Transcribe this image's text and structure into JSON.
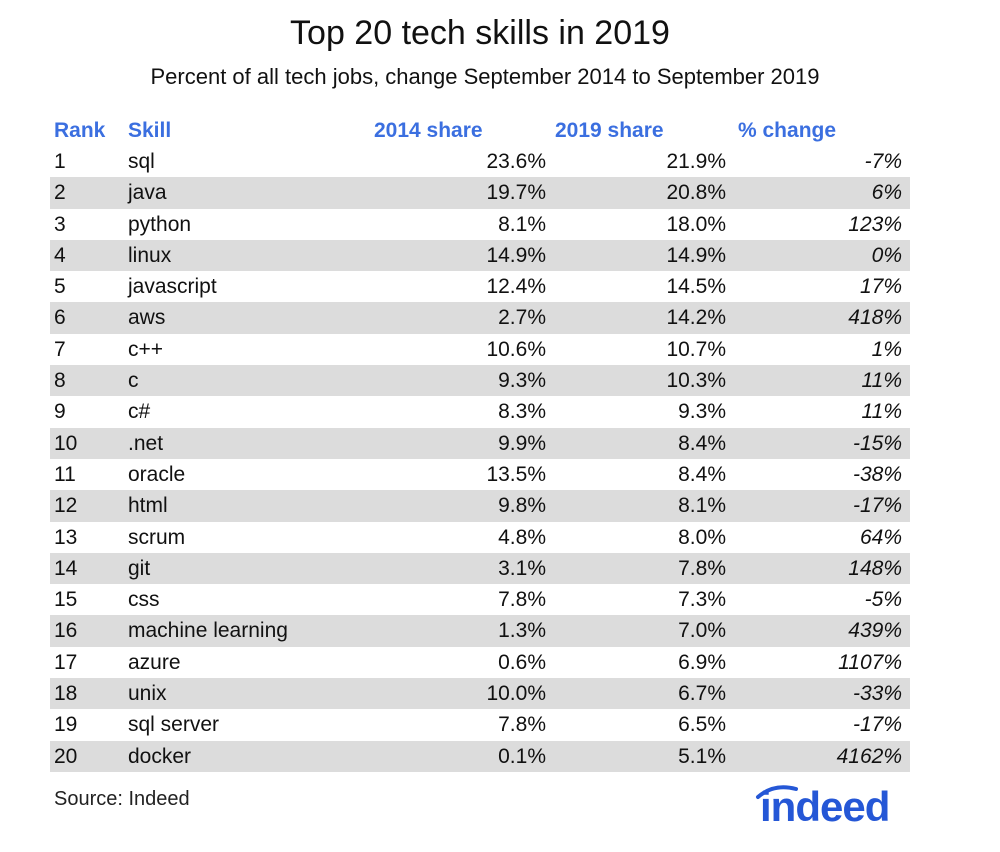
{
  "chart_data": {
    "type": "table",
    "title": "Top 20 tech skills in 2019",
    "subtitle": "Percent of all tech jobs, change September 2014 to September 2019",
    "columns": [
      "Rank",
      "Skill",
      "2014 share",
      "2019 share",
      "% change"
    ],
    "rows": [
      {
        "rank": "1",
        "skill": "sql",
        "share_2014": "23.6%",
        "share_2019": "21.9%",
        "change": "-7%"
      },
      {
        "rank": "2",
        "skill": "java",
        "share_2014": "19.7%",
        "share_2019": "20.8%",
        "change": "6%"
      },
      {
        "rank": "3",
        "skill": "python",
        "share_2014": "8.1%",
        "share_2019": "18.0%",
        "change": "123%"
      },
      {
        "rank": "4",
        "skill": "linux",
        "share_2014": "14.9%",
        "share_2019": "14.9%",
        "change": "0%"
      },
      {
        "rank": "5",
        "skill": "javascript",
        "share_2014": "12.4%",
        "share_2019": "14.5%",
        "change": "17%"
      },
      {
        "rank": "6",
        "skill": "aws",
        "share_2014": "2.7%",
        "share_2019": "14.2%",
        "change": "418%"
      },
      {
        "rank": "7",
        "skill": "c++",
        "share_2014": "10.6%",
        "share_2019": "10.7%",
        "change": "1%"
      },
      {
        "rank": "8",
        "skill": "c",
        "share_2014": "9.3%",
        "share_2019": "10.3%",
        "change": "11%"
      },
      {
        "rank": "9",
        "skill": "c#",
        "share_2014": "8.3%",
        "share_2019": "9.3%",
        "change": "11%"
      },
      {
        "rank": "10",
        "skill": ".net",
        "share_2014": "9.9%",
        "share_2019": "8.4%",
        "change": "-15%"
      },
      {
        "rank": "11",
        "skill": "oracle",
        "share_2014": "13.5%",
        "share_2019": "8.4%",
        "change": "-38%"
      },
      {
        "rank": "12",
        "skill": "html",
        "share_2014": "9.8%",
        "share_2019": "8.1%",
        "change": "-17%"
      },
      {
        "rank": "13",
        "skill": "scrum",
        "share_2014": "4.8%",
        "share_2019": "8.0%",
        "change": "64%"
      },
      {
        "rank": "14",
        "skill": "git",
        "share_2014": "3.1%",
        "share_2019": "7.8%",
        "change": "148%"
      },
      {
        "rank": "15",
        "skill": "css",
        "share_2014": "7.8%",
        "share_2019": "7.3%",
        "change": "-5%"
      },
      {
        "rank": "16",
        "skill": "machine learning",
        "share_2014": "1.3%",
        "share_2019": "7.0%",
        "change": "439%"
      },
      {
        "rank": "17",
        "skill": "azure",
        "share_2014": "0.6%",
        "share_2019": "6.9%",
        "change": "1107%"
      },
      {
        "rank": "18",
        "skill": "unix",
        "share_2014": "10.0%",
        "share_2019": "6.7%",
        "change": "-33%"
      },
      {
        "rank": "19",
        "skill": "sql server",
        "share_2014": "7.8%",
        "share_2019": "6.5%",
        "change": "-17%"
      },
      {
        "rank": "20",
        "skill": "docker",
        "share_2014": "0.1%",
        "share_2019": "5.1%",
        "change": "4162%"
      }
    ],
    "source": "Source: Indeed",
    "logo_text": "indeed",
    "colors": {
      "header": "#3b6fe0",
      "shade": "#dcdcdc",
      "logo": "#2557d6"
    }
  }
}
